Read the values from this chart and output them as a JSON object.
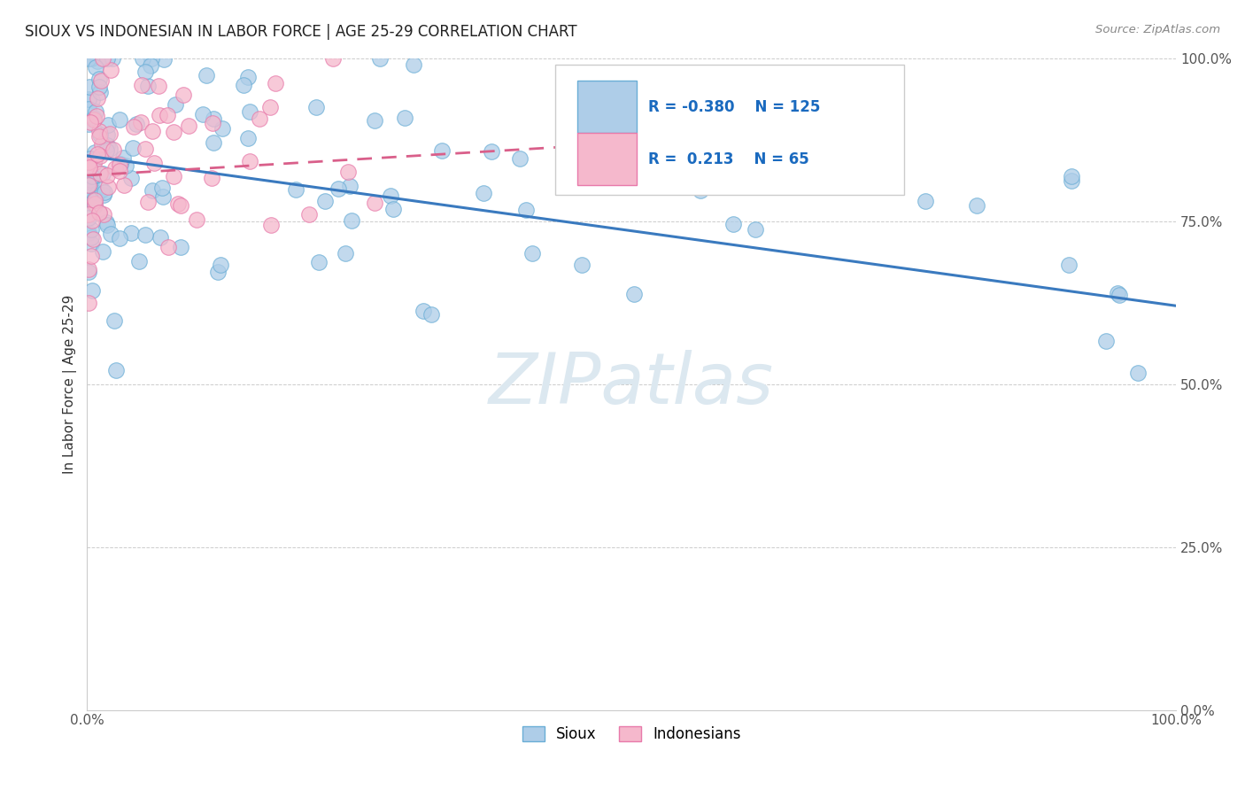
{
  "title": "SIOUX VS INDONESIAN IN LABOR FORCE | AGE 25-29 CORRELATION CHART",
  "source_text": "Source: ZipAtlas.com",
  "ylabel": "In Labor Force | Age 25-29",
  "sioux_R": -0.38,
  "sioux_N": 125,
  "indonesian_R": 0.213,
  "indonesian_N": 65,
  "legend_entries": [
    "Sioux",
    "Indonesians"
  ],
  "sioux_color": "#aecde8",
  "indonesian_color": "#f5b8cc",
  "sioux_edge_color": "#6aaed6",
  "indonesian_edge_color": "#e87aaa",
  "sioux_line_color": "#3a7abf",
  "indonesian_line_color": "#d95f8a",
  "background_color": "#ffffff",
  "watermark_color": "#dce8f0",
  "grid_color": "#cccccc",
  "title_color": "#222222",
  "axis_label_color": "#333333",
  "tick_color": "#555555",
  "legend_text_color": "#1a6abf",
  "source_color": "#888888"
}
